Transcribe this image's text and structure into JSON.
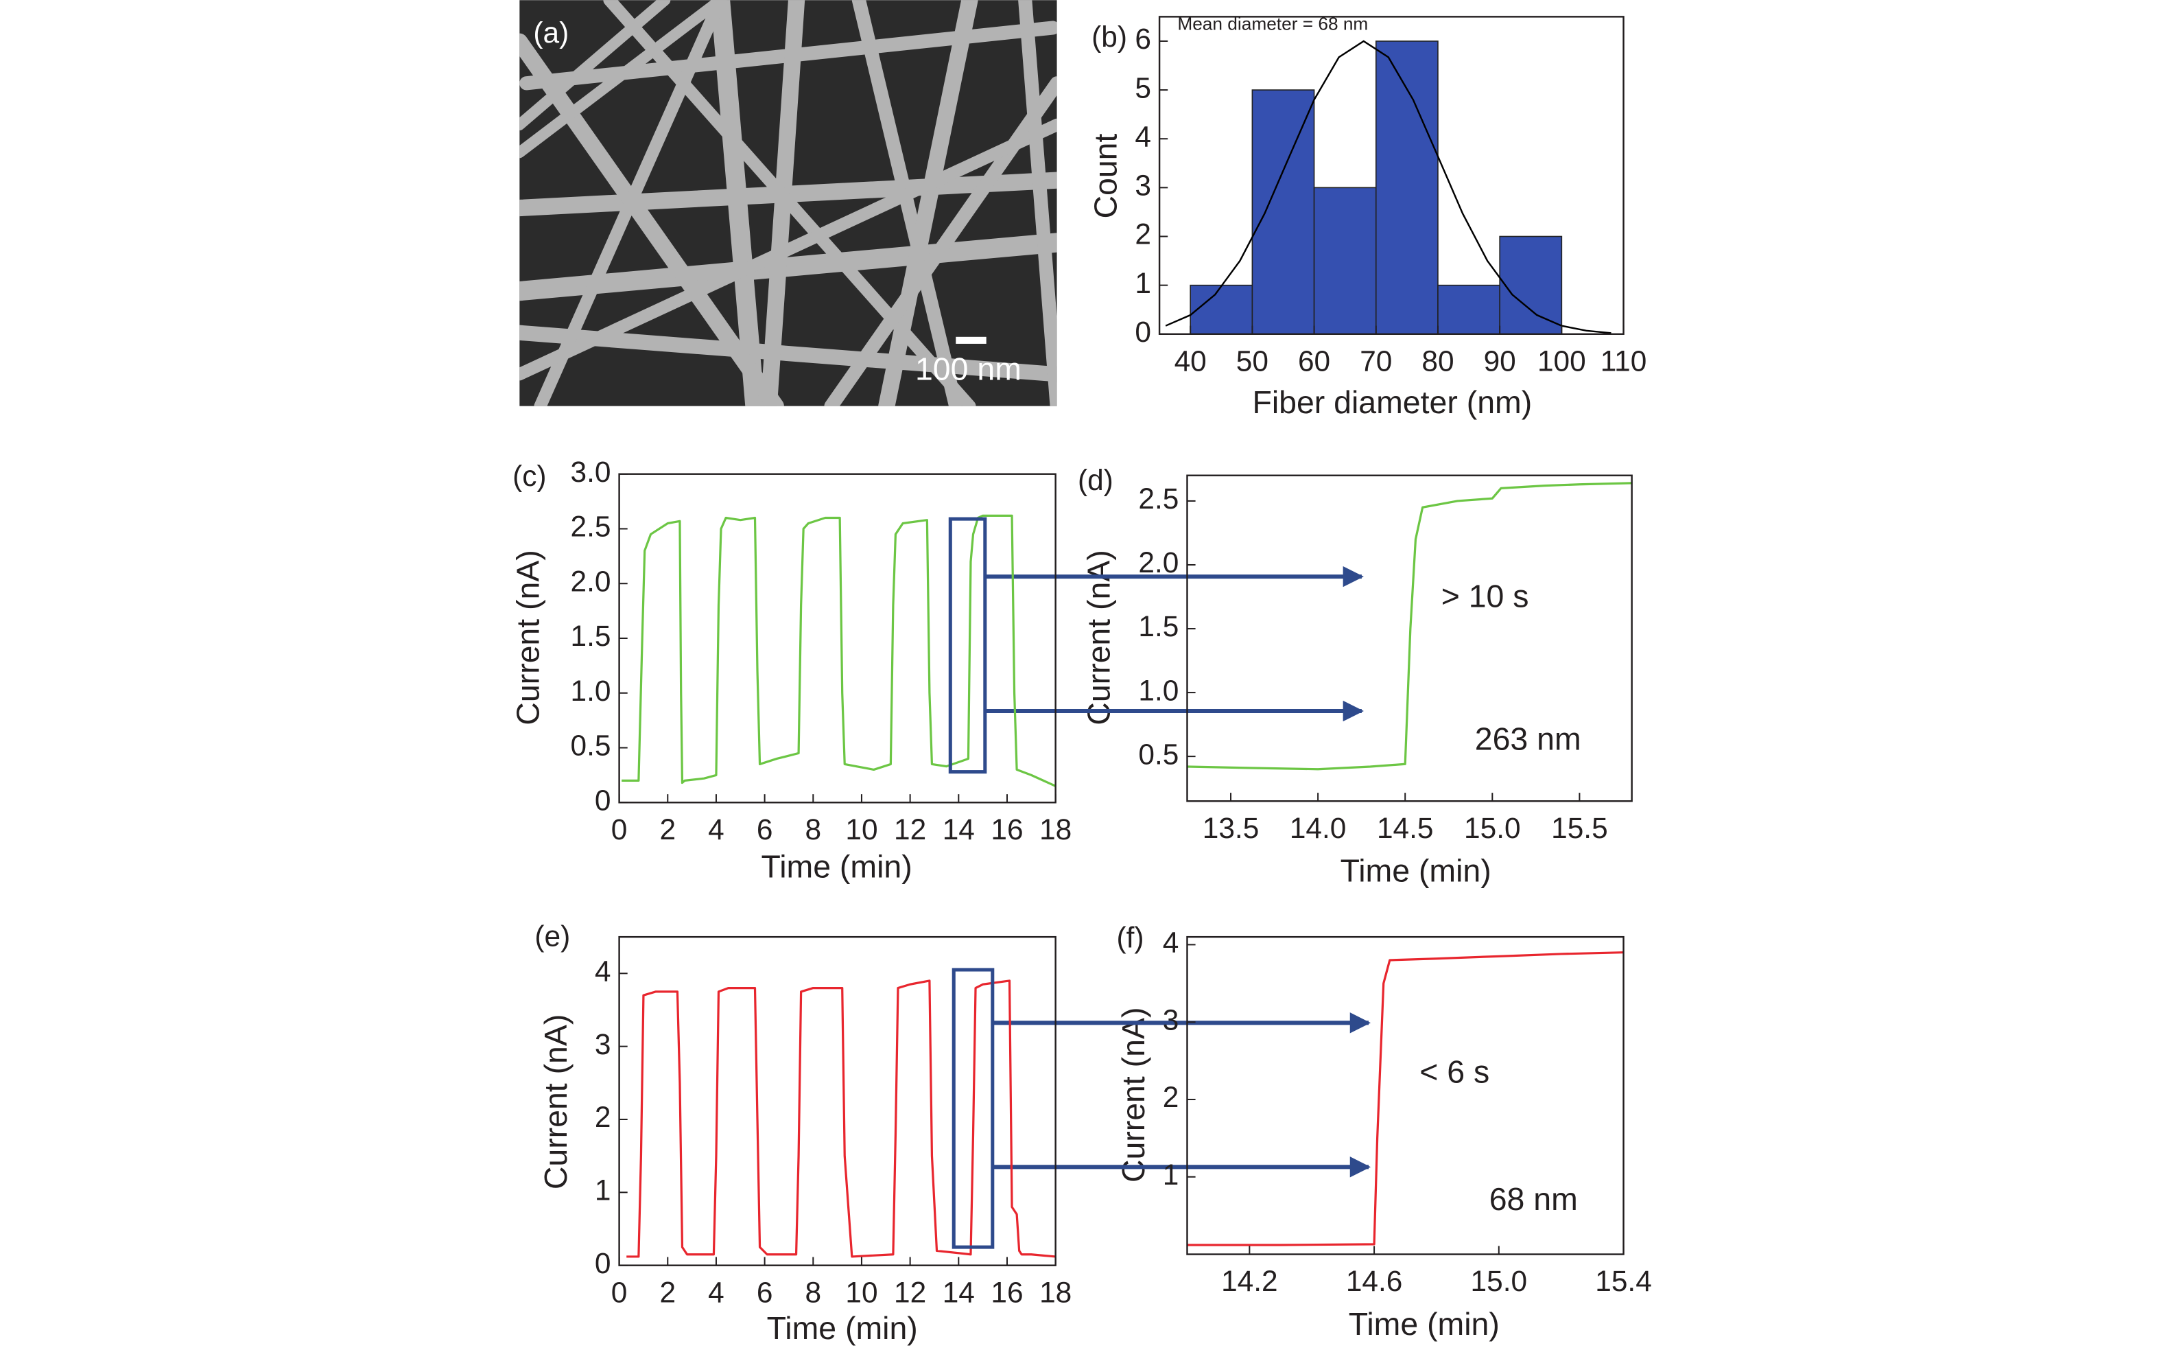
{
  "chart_data": [
    {
      "type": "image",
      "panel": "(a)",
      "scale_bar": "100 nm"
    },
    {
      "type": "histogram",
      "panel": "(b)",
      "annotation": "Mean diameter = 68 nm",
      "xlabel": "Fiber diameter (nm)",
      "ylabel": "Count",
      "bins": [
        40,
        50,
        60,
        70,
        80,
        90,
        100
      ],
      "values": [
        1,
        5,
        3,
        6,
        1,
        2
      ],
      "color": "#3550b0",
      "fit": {
        "x": [
          36,
          40,
          44,
          48,
          52,
          56,
          60,
          64,
          68,
          72,
          76,
          80,
          84,
          88,
          92,
          96,
          100,
          104,
          108
        ],
        "y": [
          0.17,
          0.39,
          0.81,
          1.5,
          2.47,
          3.64,
          4.8,
          5.67,
          6,
          5.67,
          4.8,
          3.64,
          2.47,
          1.5,
          0.81,
          0.39,
          0.17,
          0.07,
          0.02
        ],
        "color": "#000000"
      },
      "xlim": [
        35,
        110
      ],
      "ylim": [
        0,
        6.5
      ],
      "xticks": [
        40,
        50,
        60,
        70,
        80,
        90,
        100,
        110
      ],
      "yticks": [
        0,
        1,
        2,
        3,
        4,
        5,
        6
      ]
    },
    {
      "type": "line",
      "panel": "(c)",
      "xlabel": "Time (min)",
      "ylabel": "Current (nA)",
      "color": "#6cc644",
      "x": [
        0.1,
        0.8,
        0.95,
        1.05,
        1.3,
        2.0,
        2.5,
        2.55,
        2.6,
        2.7,
        3.5,
        4.0,
        4.1,
        4.2,
        4.4,
        5.0,
        5.6,
        5.7,
        5.8,
        6.5,
        7.4,
        7.5,
        7.6,
        7.8,
        8.5,
        9.1,
        9.2,
        9.3,
        10.5,
        11.2,
        11.3,
        11.4,
        11.7,
        12.7,
        12.8,
        12.9,
        13.5,
        14.4,
        14.5,
        14.6,
        14.8,
        15.0,
        16.2,
        16.3,
        16.4,
        17.0,
        18.0
      ],
      "values": [
        0.2,
        0.2,
        1.5,
        2.3,
        2.45,
        2.55,
        2.57,
        1.0,
        0.18,
        0.2,
        0.22,
        0.25,
        1.8,
        2.5,
        2.6,
        2.58,
        2.6,
        1.2,
        0.35,
        0.4,
        0.45,
        1.8,
        2.5,
        2.55,
        2.6,
        2.6,
        1.0,
        0.35,
        0.3,
        0.35,
        1.8,
        2.45,
        2.55,
        2.58,
        1.0,
        0.35,
        0.33,
        0.4,
        2.2,
        2.45,
        2.6,
        2.62,
        2.62,
        1.0,
        0.3,
        0.25,
        0.15
      ],
      "zoom_box": {
        "x": [
          13.66,
          15.09
        ],
        "y": [
          0.28,
          2.59
        ],
        "color": "#2e4a8c"
      },
      "xlim": [
        0,
        18
      ],
      "ylim": [
        0,
        3
      ],
      "xticks": [
        0,
        2,
        4,
        6,
        8,
        10,
        12,
        14,
        16,
        18
      ],
      "yticks": [
        0,
        0.5,
        {
          "value": 1,
          "label": "1.0"
        },
        1.5,
        {
          "value": 2,
          "label": "2.0"
        },
        2.5,
        {
          "value": 3,
          "label": "3.0"
        }
      ]
    },
    {
      "type": "line",
      "panel": "(d)",
      "xlabel": "Time (min)",
      "ylabel": "Current (nA)",
      "color": "#6cc644",
      "annotations": [
        "> 10 s",
        "263 nm"
      ],
      "x": [
        13.25,
        13.6,
        14.0,
        14.3,
        14.5,
        14.53,
        14.56,
        14.6,
        14.8,
        15.0,
        15.05,
        15.3,
        15.5,
        15.8
      ],
      "values": [
        0.42,
        0.41,
        0.4,
        0.42,
        0.44,
        1.5,
        2.2,
        2.45,
        2.5,
        2.52,
        2.6,
        2.62,
        2.63,
        2.64
      ],
      "xlim": [
        13.25,
        15.8
      ],
      "ylim": [
        0.15,
        2.7
      ],
      "xticks": [
        13.5,
        {
          "value": 14,
          "label": "14.0"
        },
        14.5,
        {
          "value": 15,
          "label": "15.0"
        },
        15.5
      ],
      "yticks": [
        0.5,
        {
          "value": 1,
          "label": "1.0"
        },
        1.5,
        {
          "value": 2,
          "label": "2.0"
        },
        2.5
      ]
    },
    {
      "type": "line",
      "panel": "(e)",
      "xlabel": "Time (min)",
      "ylabel": "Current (nA)",
      "color": "#e8262e",
      "x": [
        0.3,
        0.8,
        0.9,
        1.0,
        1.5,
        2.4,
        2.5,
        2.6,
        2.8,
        3.9,
        4.0,
        4.1,
        4.5,
        5.6,
        5.7,
        5.8,
        6.1,
        7.3,
        7.4,
        7.5,
        8.0,
        9.2,
        9.3,
        9.6,
        11.3,
        11.4,
        11.5,
        12.0,
        12.8,
        12.9,
        13.1,
        14.5,
        14.6,
        14.7,
        15.0,
        16.1,
        16.2,
        16.4,
        16.5,
        16.6,
        17.0,
        18.0
      ],
      "values": [
        0.12,
        0.12,
        1.5,
        3.7,
        3.75,
        3.75,
        2.5,
        0.25,
        0.15,
        0.15,
        1.5,
        3.75,
        3.8,
        3.8,
        2.0,
        0.25,
        0.15,
        0.15,
        1.5,
        3.75,
        3.8,
        3.8,
        1.5,
        0.12,
        0.15,
        1.8,
        3.8,
        3.85,
        3.9,
        1.5,
        0.2,
        0.15,
        1.8,
        3.8,
        3.85,
        3.9,
        0.8,
        0.7,
        0.2,
        0.15,
        0.15,
        0.12
      ],
      "zoom_box": {
        "x": [
          13.8,
          15.4
        ],
        "y": [
          0.25,
          4.05
        ],
        "color": "#2e4a8c"
      },
      "xlim": [
        0,
        18
      ],
      "ylim": [
        0,
        4.5
      ],
      "xticks": [
        0,
        2,
        4,
        6,
        8,
        10,
        12,
        14,
        16,
        18
      ],
      "yticks": [
        0,
        1,
        2,
        3,
        4
      ]
    },
    {
      "type": "line",
      "panel": "(f)",
      "xlabel": "Time (min)",
      "ylabel": "Current (nA)",
      "color": "#e8262e",
      "annotations": [
        "< 6 s",
        "68 nm"
      ],
      "x": [
        14.0,
        14.3,
        14.6,
        14.61,
        14.63,
        14.65,
        14.8,
        15.0,
        15.2,
        15.4
      ],
      "values": [
        0.12,
        0.12,
        0.13,
        1.5,
        3.5,
        3.8,
        3.82,
        3.85,
        3.88,
        3.9
      ],
      "xlim": [
        14,
        15.4
      ],
      "ylim": [
        0,
        4.1
      ],
      "xticks": [
        14.2,
        14.6,
        {
          "value": 15,
          "label": "15.0"
        },
        15.4
      ],
      "yticks": [
        1,
        2,
        3,
        4
      ]
    }
  ]
}
